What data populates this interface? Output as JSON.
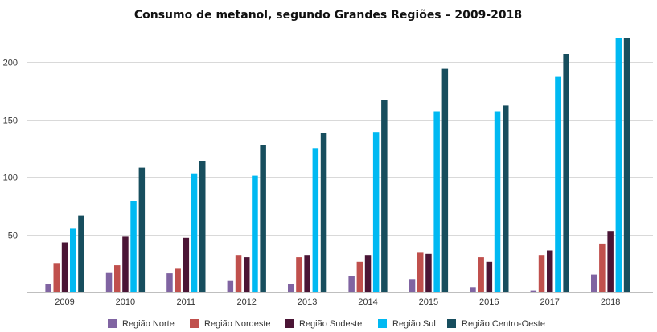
{
  "chart_data": {
    "type": "bar",
    "title": "Consumo de metanol, segundo Grandes Regiões – 2009-2018",
    "xlabel": "",
    "ylabel": "",
    "categories": [
      "2009",
      "2010",
      "2011",
      "2012",
      "2013",
      "2014",
      "2015",
      "2016",
      "2017",
      "2018"
    ],
    "ylim": [
      0,
      221
    ],
    "yticks": [
      50,
      100,
      150,
      200
    ],
    "grid": true,
    "legend_position": "bottom",
    "series": [
      {
        "name": "Região Norte",
        "color": "#8064A2",
        "values": [
          7,
          17,
          16,
          10,
          7,
          14,
          11,
          4,
          1,
          15
        ]
      },
      {
        "name": "Região Nordeste",
        "color": "#C0504D",
        "values": [
          25,
          23,
          20,
          32,
          30,
          26,
          34,
          30,
          32,
          42
        ]
      },
      {
        "name": "Região Sudeste",
        "color": "#4B1535",
        "values": [
          43,
          48,
          47,
          30,
          32,
          32,
          33,
          26,
          36,
          53
        ]
      },
      {
        "name": "Região Sul",
        "color": "#00B9F2",
        "values": [
          55,
          79,
          103,
          101,
          125,
          139,
          157,
          157,
          187,
          221
        ]
      },
      {
        "name": "Região Centro-Oeste",
        "color": "#174E5E",
        "values": [
          66,
          108,
          114,
          128,
          138,
          167,
          194,
          162,
          207,
          221
        ]
      }
    ]
  }
}
